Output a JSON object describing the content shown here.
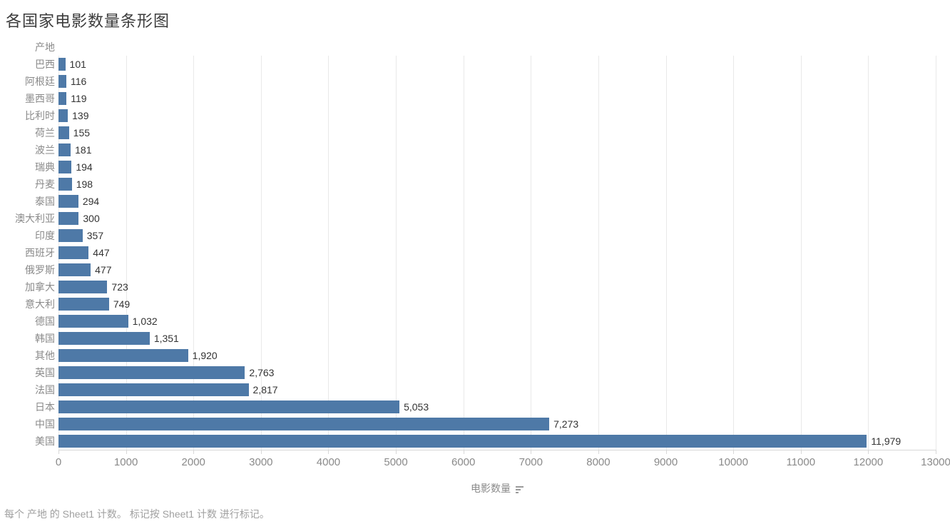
{
  "title": "各国家电影数量条形图",
  "row_header": "产地",
  "axis": {
    "label": "电影数量",
    "icon": "sort-descending-icon",
    "tick_labels": [
      "0",
      "1000",
      "2000",
      "3000",
      "4000",
      "5000",
      "6000",
      "7000",
      "8000",
      "9000",
      "10000",
      "11000",
      "12000",
      "13000"
    ]
  },
  "caption": "每个 产地 的 Sheet1 计数。 标记按 Sheet1 计数 进行标记。",
  "colors": {
    "bar": "#4e79a7",
    "gridline": "#e9e9e9",
    "axis_line": "#d8d8d8",
    "tick_text": "#8a8a8a",
    "value_text": "#333333",
    "title_text": "#3b3b3b",
    "caption_text": "#a0a0a0"
  },
  "chart_data": {
    "type": "bar",
    "orientation": "horizontal",
    "title": "各国家电影数量条形图",
    "xlabel": "电影数量",
    "ylabel": "产地",
    "xlim": [
      0,
      13000
    ],
    "x_tick_interval": 1000,
    "grid": true,
    "legend": false,
    "sort": "ascending-top-to-bottom",
    "categories": [
      "巴西",
      "阿根廷",
      "墨西哥",
      "比利时",
      "荷兰",
      "波兰",
      "瑞典",
      "丹麦",
      "泰国",
      "澳大利亚",
      "印度",
      "西班牙",
      "俄罗斯",
      "加拿大",
      "意大利",
      "德国",
      "韩国",
      "其他",
      "英国",
      "法国",
      "日本",
      "中国",
      "美国"
    ],
    "values": [
      101,
      116,
      119,
      139,
      155,
      181,
      194,
      198,
      294,
      300,
      357,
      447,
      477,
      723,
      749,
      1032,
      1351,
      1920,
      2763,
      2817,
      5053,
      7273,
      11979
    ],
    "value_labels": [
      "101",
      "116",
      "119",
      "139",
      "155",
      "181",
      "194",
      "198",
      "294",
      "300",
      "357",
      "447",
      "477",
      "723",
      "749",
      "1,032",
      "1,351",
      "1,920",
      "2,763",
      "2,817",
      "5,053",
      "7,273",
      "11,979"
    ]
  }
}
